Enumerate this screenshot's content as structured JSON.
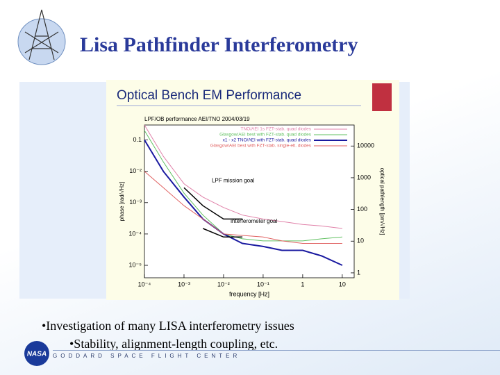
{
  "header": {
    "title": "Lisa Pathfinder Interferometry"
  },
  "figure": {
    "title": "Optical Bench EM Performance",
    "chart_data": {
      "type": "line",
      "subtitle": "LPF/OB performance AEI/TNO 2004/03/19",
      "x_label": "frequency [Hz]",
      "y_label": "phase [rad/√Hz]",
      "y2_label": "optical pathlength [pm/√Hz]",
      "x": [
        0.0001,
        0.0003,
        0.001,
        0.003,
        0.01,
        0.03,
        0.1,
        0.3,
        1,
        3,
        10
      ],
      "xlim": [
        0.0001,
        20
      ],
      "ylim": [
        4e-06,
        0.3
      ],
      "y2lim": [
        0.7,
        46000
      ],
      "log_x": true,
      "log_y": true,
      "xticks": [
        {
          "value": 0.0001,
          "label": "10⁻⁴"
        },
        {
          "value": 0.001,
          "label": "10⁻³"
        },
        {
          "value": 0.01,
          "label": "10⁻²"
        },
        {
          "value": 0.1,
          "label": "10⁻¹"
        },
        1,
        10
      ],
      "yticks": [
        {
          "value": 1e-05,
          "label": "10⁻⁵"
        },
        {
          "value": 0.0001,
          "label": "10⁻⁴"
        },
        {
          "value": 0.001,
          "label": "10⁻³"
        },
        {
          "value": 0.01,
          "label": "10⁻²"
        },
        0.1
      ],
      "y2ticks": [
        1,
        10,
        100,
        1000,
        10000
      ],
      "series": [
        {
          "name": "TNO/AEI 1s FZT-stab. quad diodes",
          "color": "#e080a8",
          "values": [
            0.3,
            0.03,
            0.004,
            0.0015,
            0.0007,
            0.0004,
            0.0003,
            0.00025,
            0.0002,
            0.00018,
            0.00015
          ]
        },
        {
          "name": "Glasgow/AEI best with FZT-stab. quad diodes",
          "color": "#60c060",
          "values": [
            0.2,
            0.02,
            0.002,
            0.0004,
            0.0001,
            7e-05,
            6e-05,
            6e-05,
            6e-05,
            7e-05,
            8e-05
          ]
        },
        {
          "name": "x1 - x2 TNO/AEI with FZT-stab. quad diodes",
          "color": "#1a1aa0",
          "values": [
            0.1,
            0.01,
            0.0015,
            0.0003,
            0.0001,
            5e-05,
            4e-05,
            3e-05,
            3e-05,
            2e-05,
            1e-05
          ]
        },
        {
          "name": "Glasgow/AEI best with FZT-stab. single-elt. diodes",
          "color": "#e06060",
          "values": [
            0.01,
            0.003,
            0.0008,
            0.0003,
            0.0001,
            9e-05,
            8e-05,
            6e-05,
            5e-05,
            5e-05,
            5e-05
          ]
        }
      ],
      "goals": [
        {
          "label": "LPF mission goal",
          "color": "#000000",
          "values": [
            null,
            null,
            0.003,
            0.0008,
            0.0003,
            0.0003,
            null,
            null,
            null,
            null,
            null
          ]
        },
        {
          "label": "interferometer goal",
          "color": "#000000",
          "values": [
            null,
            null,
            null,
            0.00015,
            8e-05,
            8e-05,
            null,
            null,
            null,
            null,
            null
          ]
        }
      ]
    }
  },
  "bullets": [
    "•Investigation of many LISA interferometry issues",
    "•Stability, alignment-length coupling, etc."
  ],
  "footer": {
    "logo": "NASA",
    "organization": "GODDARD SPACE FLIGHT CENTER"
  }
}
